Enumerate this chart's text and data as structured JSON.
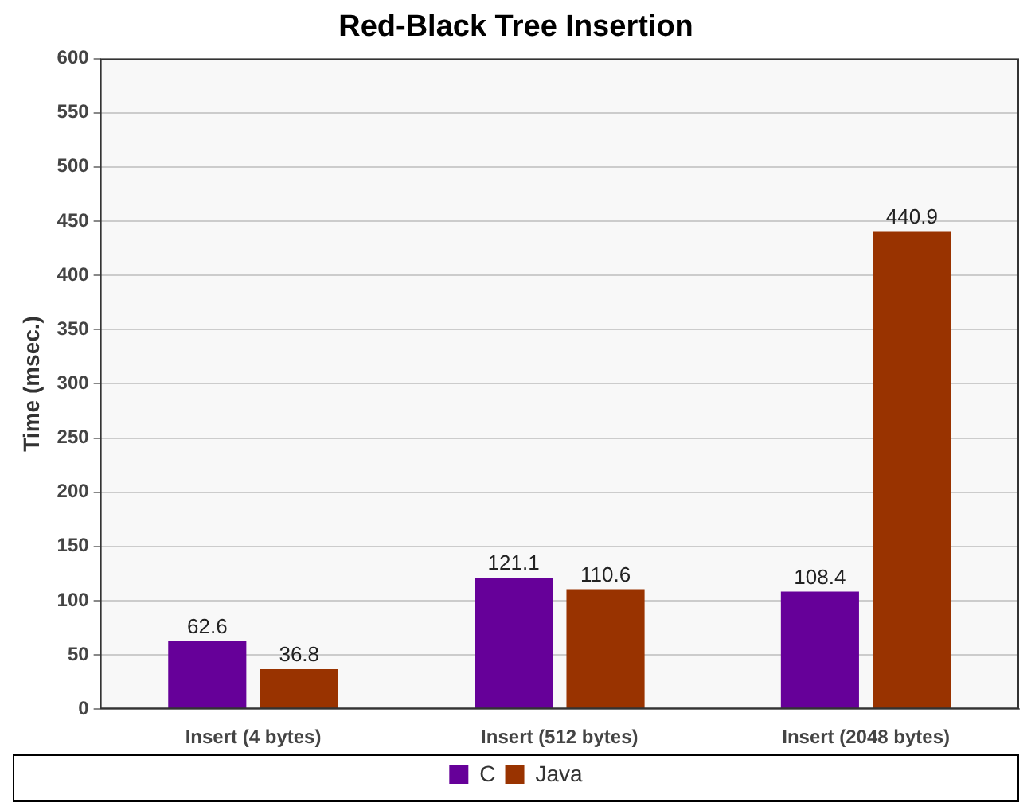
{
  "chart_data": {
    "type": "bar",
    "title": "Red-Black Tree Insertion",
    "ylabel": "Time (msec.)",
    "categories": [
      "Insert (4 bytes)",
      "Insert (512 bytes)",
      "Insert (2048 bytes)"
    ],
    "series": [
      {
        "name": "C",
        "color": "#660099",
        "values": [
          62.6,
          121.1,
          108.4
        ]
      },
      {
        "name": "Java",
        "color": "#993300",
        "values": [
          36.8,
          110.6,
          440.9
        ]
      }
    ],
    "ylim": [
      0,
      600
    ],
    "yticks": [
      0,
      50,
      100,
      150,
      200,
      250,
      300,
      350,
      400,
      450,
      500,
      550,
      600
    ],
    "grid": "y",
    "legend": "bottom",
    "data_labels": true
  }
}
